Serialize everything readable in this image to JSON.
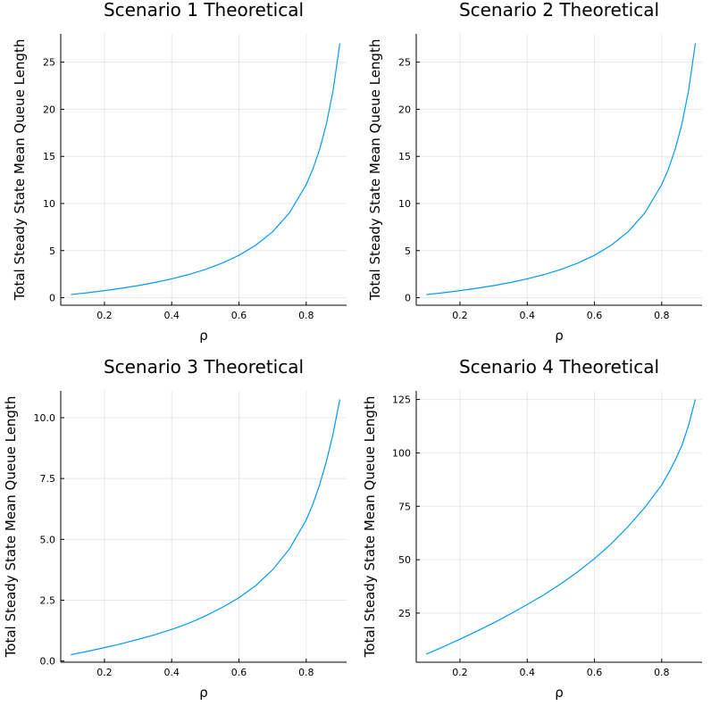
{
  "chart_data": [
    {
      "type": "line",
      "title": "Scenario 1 Theoretical",
      "xlabel": "ρ",
      "ylabel": "Total Steady State Mean Queue Length",
      "xlim": [
        0.07,
        0.92
      ],
      "ylim": [
        -0.8,
        28
      ],
      "xticks": [
        0.2,
        0.4,
        0.6,
        0.8
      ],
      "xtick_labels": [
        "0.2",
        "0.4",
        "0.6",
        "0.8"
      ],
      "yticks": [
        0,
        5,
        10,
        15,
        20,
        25
      ],
      "ytick_labels": [
        "0",
        "5",
        "10",
        "15",
        "20",
        "25"
      ],
      "grid": true,
      "series": [
        {
          "color": "#009af9",
          "x": [
            0.1,
            0.15,
            0.2,
            0.25,
            0.3,
            0.35,
            0.4,
            0.45,
            0.5,
            0.55,
            0.6,
            0.65,
            0.7,
            0.75,
            0.8,
            0.82,
            0.84,
            0.86,
            0.88,
            0.9
          ],
          "y": [
            0.333,
            0.529,
            0.75,
            1.0,
            1.286,
            1.615,
            2.0,
            2.455,
            3.0,
            3.667,
            4.5,
            5.571,
            7.0,
            9.0,
            12.0,
            13.667,
            15.75,
            18.429,
            22.0,
            27.0
          ]
        }
      ]
    },
    {
      "type": "line",
      "title": "Scenario 2 Theoretical",
      "xlabel": "ρ",
      "ylabel": "Total Steady State Mean Queue Length",
      "xlim": [
        0.07,
        0.92
      ],
      "ylim": [
        -0.8,
        28
      ],
      "xticks": [
        0.2,
        0.4,
        0.6,
        0.8
      ],
      "xtick_labels": [
        "0.2",
        "0.4",
        "0.6",
        "0.8"
      ],
      "yticks": [
        0,
        5,
        10,
        15,
        20,
        25
      ],
      "ytick_labels": [
        "0",
        "5",
        "10",
        "15",
        "20",
        "25"
      ],
      "grid": true,
      "series": [
        {
          "color": "#009af9",
          "x": [
            0.1,
            0.15,
            0.2,
            0.25,
            0.3,
            0.35,
            0.4,
            0.45,
            0.5,
            0.55,
            0.6,
            0.65,
            0.7,
            0.75,
            0.8,
            0.82,
            0.84,
            0.86,
            0.88,
            0.9
          ],
          "y": [
            0.333,
            0.529,
            0.75,
            1.0,
            1.286,
            1.615,
            2.0,
            2.455,
            3.0,
            3.667,
            4.5,
            5.571,
            7.0,
            9.0,
            12.0,
            13.667,
            15.75,
            18.429,
            22.0,
            27.0
          ]
        }
      ]
    },
    {
      "type": "line",
      "title": "Scenario 3 Theoretical",
      "xlabel": "ρ",
      "ylabel": "Total Steady State Mean Queue Length",
      "xlim": [
        0.07,
        0.92
      ],
      "ylim": [
        -0.05,
        11.1
      ],
      "xticks": [
        0.2,
        0.4,
        0.6,
        0.8
      ],
      "xtick_labels": [
        "0.2",
        "0.4",
        "0.6",
        "0.8"
      ],
      "yticks": [
        0,
        2.5,
        5,
        7.5,
        10
      ],
      "ytick_labels": [
        "0.0",
        "2.5",
        "5.0",
        "7.5",
        "10.0"
      ],
      "grid": true,
      "series": [
        {
          "color": "#009af9",
          "x": [
            0.1,
            0.15,
            0.2,
            0.25,
            0.3,
            0.35,
            0.4,
            0.45,
            0.5,
            0.55,
            0.6,
            0.65,
            0.7,
            0.75,
            0.8,
            0.82,
            0.84,
            0.86,
            0.88,
            0.9
          ],
          "y": [
            0.26,
            0.4,
            0.55,
            0.71,
            0.89,
            1.08,
            1.3,
            1.55,
            1.85,
            2.2,
            2.6,
            3.1,
            3.75,
            4.6,
            5.8,
            6.45,
            7.25,
            8.2,
            9.35,
            10.75
          ]
        }
      ]
    },
    {
      "type": "line",
      "title": "Scenario 4 Theoretical",
      "xlabel": "ρ",
      "ylabel": "Total Steady State Mean Queue Length",
      "xlim": [
        0.07,
        0.92
      ],
      "ylim": [
        2,
        129
      ],
      "xticks": [
        0.2,
        0.4,
        0.6,
        0.8
      ],
      "xtick_labels": [
        "0.2",
        "0.4",
        "0.6",
        "0.8"
      ],
      "yticks": [
        25,
        50,
        75,
        100,
        125
      ],
      "ytick_labels": [
        "25",
        "50",
        "75",
        "100",
        "125"
      ],
      "grid": true,
      "series": [
        {
          "color": "#009af9",
          "x": [
            0.1,
            0.15,
            0.2,
            0.25,
            0.3,
            0.35,
            0.4,
            0.45,
            0.5,
            0.55,
            0.6,
            0.65,
            0.7,
            0.75,
            0.8,
            0.82,
            0.84,
            0.86,
            0.88,
            0.9
          ],
          "y": [
            5.8,
            9.2,
            12.8,
            16.5,
            20.4,
            24.6,
            29.0,
            33.6,
            38.7,
            44.3,
            50.5,
            57.5,
            65.5,
            74.5,
            85.0,
            90.5,
            96.5,
            103.5,
            113.0,
            125.0
          ]
        }
      ]
    }
  ]
}
